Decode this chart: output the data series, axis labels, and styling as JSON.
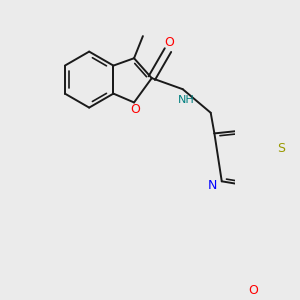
{
  "bg_color": "#ebebeb",
  "bond_color": "#1a1a1a",
  "lw": 1.4,
  "atom_colors": {
    "O": "#ff0000",
    "N": "#0000ff",
    "S": "#999900",
    "NH": "#008080"
  }
}
